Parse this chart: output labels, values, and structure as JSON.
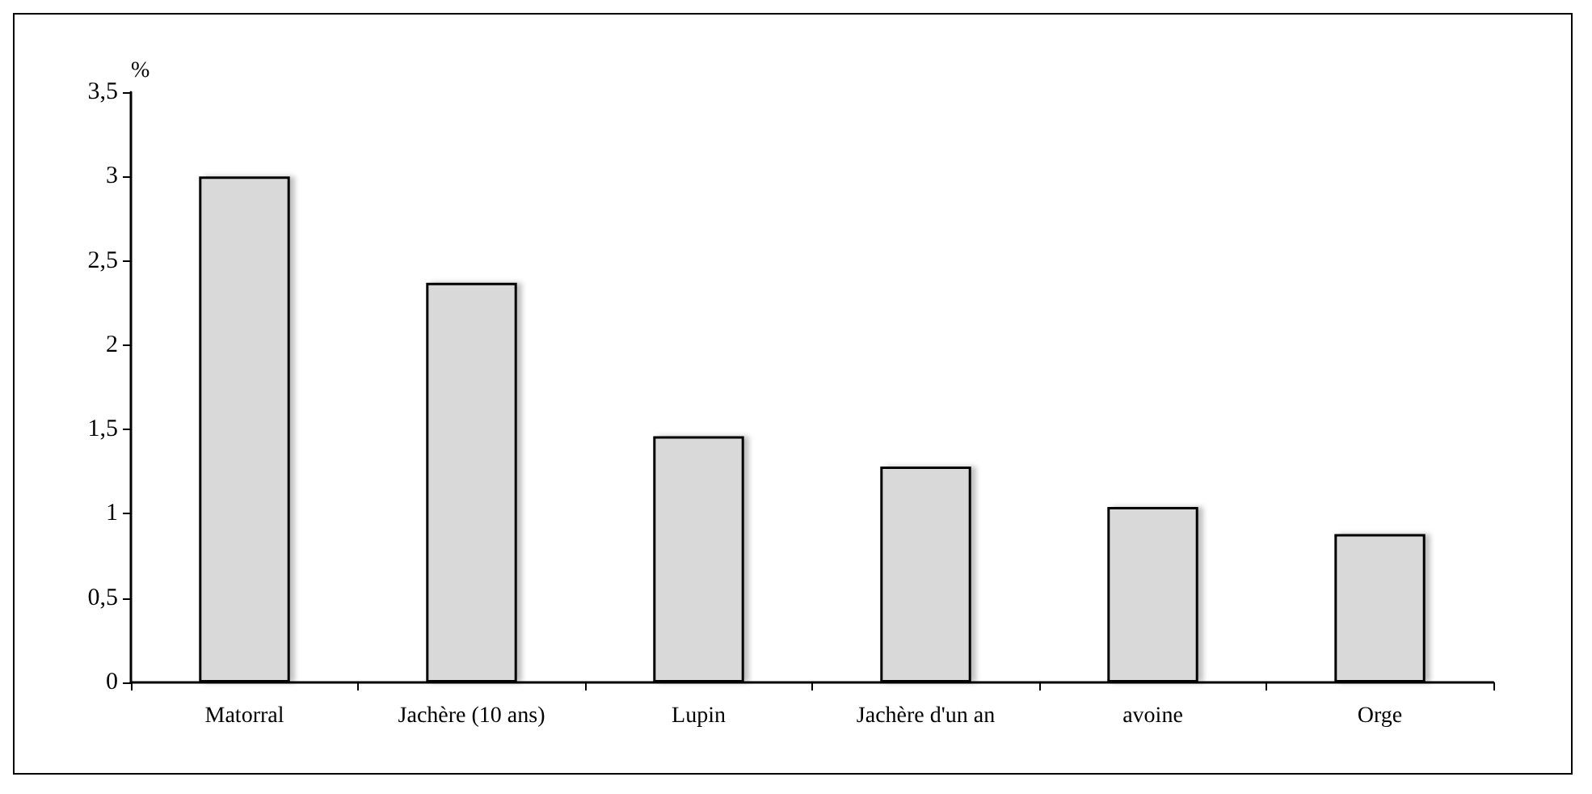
{
  "chart_data": {
    "type": "bar",
    "ylabel": "%",
    "categories": [
      "Matorral",
      "Jachère (10 ans)",
      "Lupin",
      "Jachère d'un an",
      "avoine",
      "Orge"
    ],
    "values": [
      3.0,
      2.37,
      1.46,
      1.28,
      1.04,
      0.88
    ],
    "color": "#d9d9d9",
    "ylim": [
      0,
      3.5
    ],
    "yticks": [
      {
        "value": 0,
        "label": "0"
      },
      {
        "value": 0.5,
        "label": "0,5"
      },
      {
        "value": 1,
        "label": "1"
      },
      {
        "value": 1.5,
        "label": "1,5"
      },
      {
        "value": 2,
        "label": "2"
      },
      {
        "value": 2.5,
        "label": "2,5"
      },
      {
        "value": 3,
        "label": "3"
      },
      {
        "value": 3.5,
        "label": "3,5"
      }
    ],
    "grid": false
  }
}
